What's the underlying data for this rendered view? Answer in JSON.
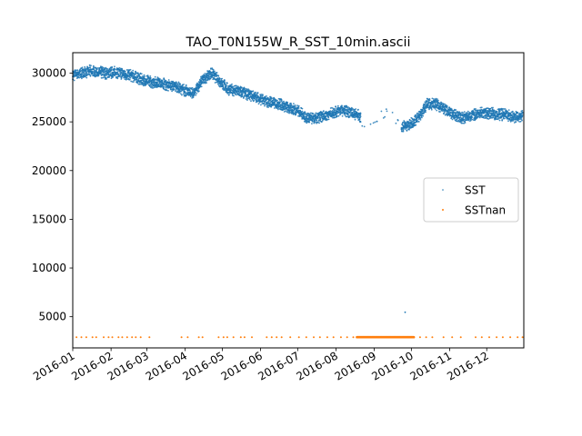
{
  "chart_data": {
    "type": "scatter",
    "title": "TAO_T0N155W_R_SST_10min.ascii",
    "xlabel": "",
    "ylabel": "",
    "xlim": [
      "2016-01-01",
      "2016-12-31"
    ],
    "ylim": [
      1800,
      32100
    ],
    "x_ticks": [
      "2016-01",
      "2016-02",
      "2016-03",
      "2016-04",
      "2016-05",
      "2016-06",
      "2016-07",
      "2016-08",
      "2016-09",
      "2016-10",
      "2016-11",
      "2016-12"
    ],
    "y_ticks": [
      5000,
      10000,
      15000,
      20000,
      25000,
      30000
    ],
    "legend_position": "center-right",
    "grid": false,
    "series": [
      {
        "name": "SST",
        "color": "#1f77b4",
        "x": [
          "2016-01-01",
          "2016-01-08",
          "2016-01-15",
          "2016-01-22",
          "2016-01-29",
          "2016-02-05",
          "2016-02-12",
          "2016-02-19",
          "2016-02-26",
          "2016-03-04",
          "2016-03-11",
          "2016-03-18",
          "2016-03-25",
          "2016-04-01",
          "2016-04-08",
          "2016-04-15",
          "2016-04-22",
          "2016-04-29",
          "2016-05-06",
          "2016-05-13",
          "2016-05-20",
          "2016-05-27",
          "2016-06-03",
          "2016-06-10",
          "2016-06-17",
          "2016-06-24",
          "2016-07-01",
          "2016-07-08",
          "2016-07-15",
          "2016-07-22",
          "2016-07-29",
          "2016-08-05",
          "2016-08-12",
          "2016-08-19",
          "2016-08-26",
          "2016-09-02",
          "2016-09-09",
          "2016-09-16",
          "2016-09-23",
          "2016-09-30",
          "2016-10-07",
          "2016-10-14",
          "2016-10-21",
          "2016-10-28",
          "2016-11-04",
          "2016-11-11",
          "2016-11-18",
          "2016-11-25",
          "2016-12-02",
          "2016-12-09",
          "2016-12-16",
          "2016-12-23",
          "2016-12-30"
        ],
        "y": [
          29800,
          30000,
          30200,
          30100,
          30000,
          30100,
          29900,
          29700,
          29300,
          29100,
          29000,
          28800,
          28600,
          28200,
          27900,
          29300,
          30000,
          29200,
          28300,
          28200,
          27900,
          27600,
          27200,
          27000,
          26800,
          26400,
          26200,
          25400,
          25300,
          25600,
          25900,
          26200,
          26000,
          25700,
          24300,
          25100,
          26000,
          25600,
          24500,
          24700,
          25500,
          26900,
          26800,
          26300,
          25700,
          25400,
          25600,
          25900,
          25900,
          25800,
          25700,
          25500,
          25700
        ]
      },
      {
        "name": "SSTnan",
        "color": "#ff7f0e",
        "x": [
          "2016-01-04",
          "2016-01-08",
          "2016-01-12",
          "2016-01-17",
          "2016-01-20",
          "2016-01-26",
          "2016-01-30",
          "2016-02-02",
          "2016-02-07",
          "2016-02-10",
          "2016-02-14",
          "2016-02-18",
          "2016-02-21",
          "2016-02-25",
          "2016-03-03",
          "2016-03-29",
          "2016-04-03",
          "2016-04-12",
          "2016-04-15",
          "2016-04-28",
          "2016-05-02",
          "2016-05-05",
          "2016-05-10",
          "2016-05-16",
          "2016-05-19",
          "2016-05-25",
          "2016-06-06",
          "2016-06-10",
          "2016-06-14",
          "2016-06-18",
          "2016-06-25",
          "2016-07-02",
          "2016-07-08",
          "2016-07-14",
          "2016-07-19",
          "2016-07-25",
          "2016-07-30",
          "2016-08-05",
          "2016-08-10",
          "2016-08-15",
          "2016-08-19",
          "2016-08-22",
          "2016-08-25",
          "2016-08-28",
          "2016-08-31",
          "2016-09-03",
          "2016-09-06",
          "2016-09-09",
          "2016-09-12",
          "2016-09-15",
          "2016-09-18",
          "2016-09-21",
          "2016-09-24",
          "2016-09-27",
          "2016-09-30",
          "2016-10-03",
          "2016-10-08",
          "2016-10-13",
          "2016-10-18",
          "2016-10-27",
          "2016-11-03",
          "2016-11-10",
          "2016-11-22",
          "2016-11-27",
          "2016-12-03",
          "2016-12-09",
          "2016-12-14",
          "2016-12-20",
          "2016-12-26",
          "2016-12-30"
        ],
        "y": [
          2900,
          2900,
          2900,
          2900,
          2900,
          2900,
          2900,
          2900,
          2900,
          2900,
          2900,
          2900,
          2900,
          2900,
          2900,
          2900,
          2900,
          2900,
          2900,
          2900,
          2900,
          2900,
          2900,
          2900,
          2900,
          2900,
          2900,
          2900,
          2900,
          2900,
          2900,
          2900,
          2900,
          2900,
          2900,
          2900,
          2900,
          2900,
          2900,
          2900,
          2900,
          2900,
          2900,
          2900,
          2900,
          2900,
          2900,
          2900,
          2900,
          2900,
          2900,
          2900,
          2900,
          2900,
          2900,
          2900,
          2900,
          2900,
          2900,
          2900,
          2900,
          2900,
          2900,
          2900,
          2900,
          2900,
          2900,
          2900,
          2900,
          2900
        ]
      }
    ]
  }
}
